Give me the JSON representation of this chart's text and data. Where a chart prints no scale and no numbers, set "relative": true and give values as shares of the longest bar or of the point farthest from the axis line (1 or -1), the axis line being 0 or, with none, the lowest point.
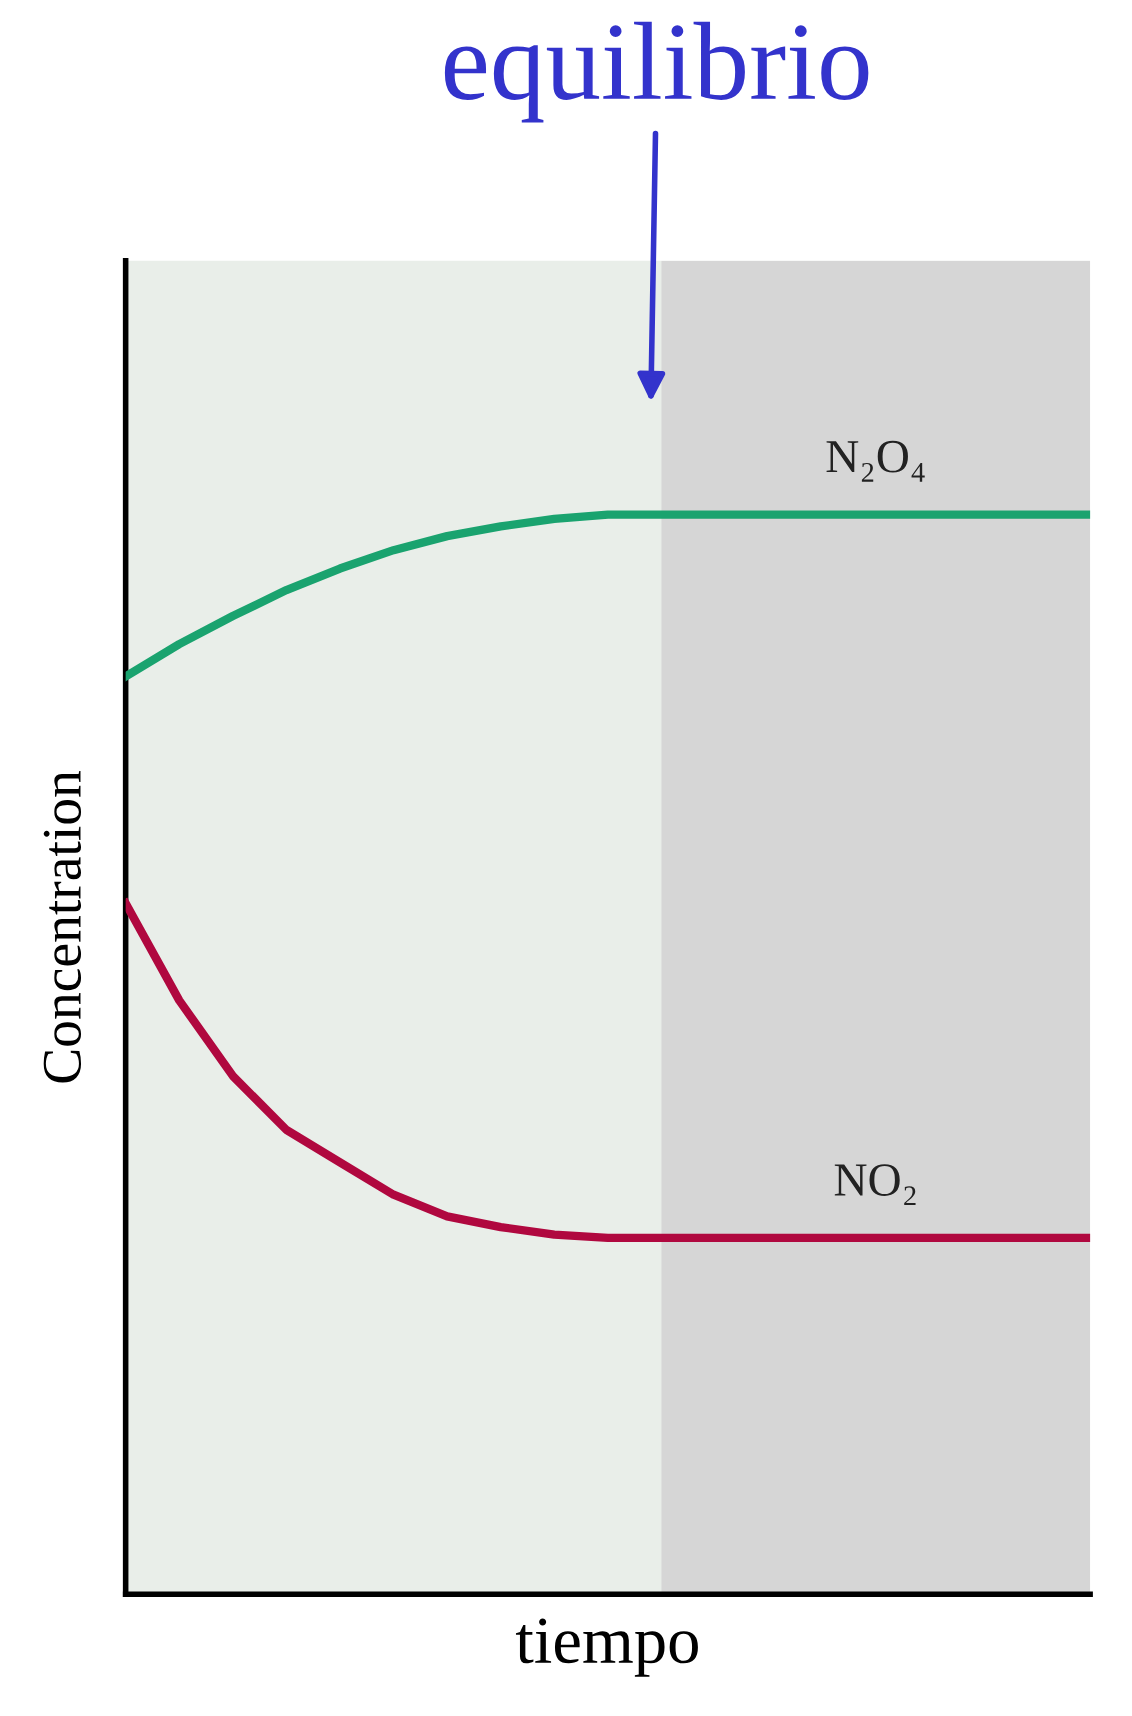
{
  "chart_data": {
    "type": "line",
    "relative": true,
    "xlabel": "tiempo",
    "ylabel": "Concentration",
    "categories": [
      null,
      null,
      null,
      null,
      null,
      null,
      null,
      null,
      null,
      null,
      null,
      null,
      null,
      null,
      null,
      null,
      null,
      null,
      null
    ],
    "series": [
      {
        "name": "N₂O₄",
        "color": "#1aa36f",
        "values": [
          0.85,
          0.88,
          0.906,
          0.93,
          0.95,
          0.967,
          0.98,
          0.989,
          0.996,
          1.0,
          1.0,
          1.0,
          1.0,
          1.0,
          1.0,
          1.0,
          1.0,
          1.0,
          1.0
        ]
      },
      {
        "name": "NO₂",
        "color": "#b0083f",
        "values": [
          0.64,
          0.55,
          0.48,
          0.43,
          0.4,
          0.37,
          0.35,
          0.34,
          0.333,
          0.33,
          0.33,
          0.33,
          0.33,
          0.33,
          0.33,
          0.33,
          0.33,
          0.33,
          0.33
        ]
      }
    ],
    "annotations": [
      "equilibrio"
    ],
    "legend": false,
    "marker": "none",
    "line_style": "solid"
  }
}
